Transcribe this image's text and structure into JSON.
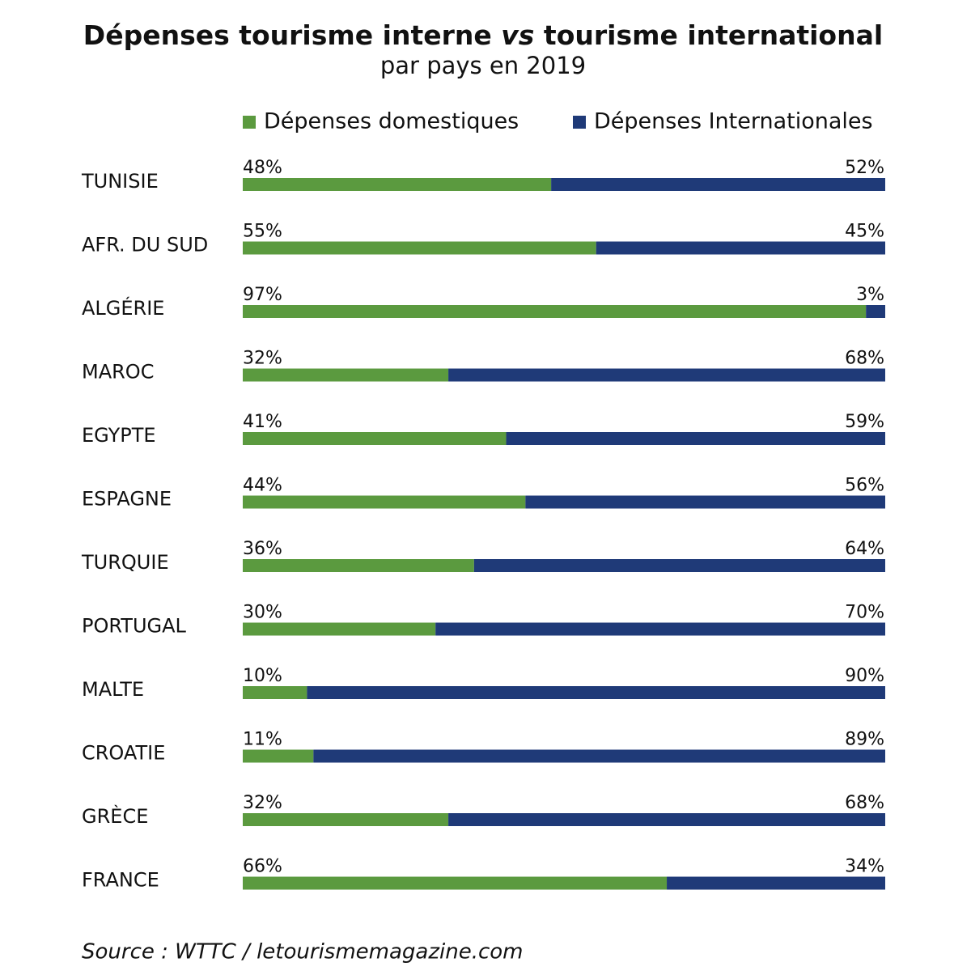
{
  "chart_data": {
    "type": "stacked-barh",
    "title": [
      "Dépenses tourisme interne",
      "vs",
      "tourisme international"
    ],
    "subtitle": "par pays en 2019",
    "source": "Source : WTTC / letourismemagazine.com",
    "categories": [
      "TUNISIE",
      "AFR. DU SUD",
      "ALGÉRIE",
      "MAROC",
      "EGYPTE",
      "ESPAGNE",
      "TURQUIE",
      "PORTUGAL",
      "MALTE",
      "CROATIE",
      "GRÈCE",
      "FRANCE"
    ],
    "series": [
      {
        "name": "Dépenses domestiques",
        "color": "#5b9a3f",
        "values": [
          48,
          55,
          97,
          32,
          41,
          44,
          36,
          30,
          10,
          11,
          32,
          66
        ],
        "value_labels": [
          "48%",
          "55%",
          "97%",
          "32%",
          "41%",
          "44%",
          "36%",
          "30%",
          "10%",
          "11%",
          "32%",
          "66%"
        ]
      },
      {
        "name": "Dépenses Internationales",
        "color": "#1f3a78",
        "values": [
          52,
          45,
          3,
          68,
          59,
          56,
          64,
          70,
          90,
          89,
          68,
          34
        ],
        "value_labels": [
          "52%",
          "45%",
          "3%",
          "68%",
          "59%",
          "56%",
          "64%",
          "70%",
          "90%",
          "89%",
          "68%",
          "34%"
        ]
      }
    ],
    "xlim": [
      0,
      100
    ],
    "legend": "top"
  }
}
